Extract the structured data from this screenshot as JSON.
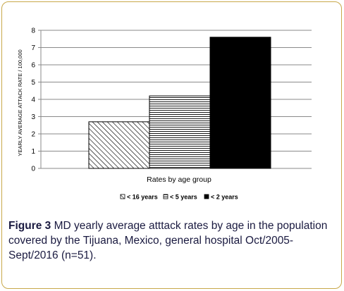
{
  "figure": {
    "label": "Figure 3",
    "caption": " MD yearly average atttack rates by age in the population covered by the Tijuana, Mexico, general hospital Oct/2005-Sept/2016 (n=51)."
  },
  "chart_data": {
    "type": "bar",
    "title": "",
    "xlabel": "Rates by age group",
    "ylabel": "YEARLY AVERAGE ATTACK RATE  / 100,000",
    "ylim": [
      0,
      8
    ],
    "yticks": [
      "0",
      "1",
      "2",
      "3",
      "4",
      "5",
      "6",
      "7",
      "8"
    ],
    "grid": true,
    "legend_position": "bottom",
    "series": [
      {
        "name": "< 16 years",
        "value": 2.7,
        "pattern": "diagonal-hatch",
        "color": "#000000"
      },
      {
        "name": "< 5 years",
        "value": 4.2,
        "pattern": "horizontal-hatch",
        "color": "#000000"
      },
      {
        "name": "< 2 years",
        "value": 7.6,
        "pattern": "solid",
        "color": "#000000"
      }
    ]
  }
}
